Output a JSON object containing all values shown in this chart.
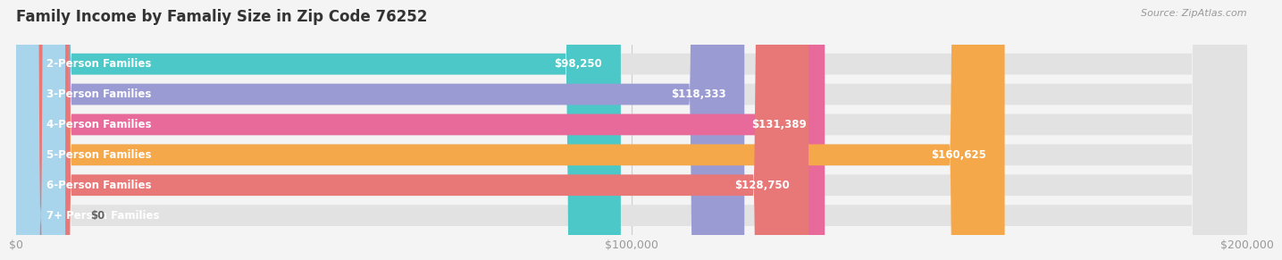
{
  "title": "Family Income by Famaliy Size in Zip Code 76252",
  "source": "Source: ZipAtlas.com",
  "categories": [
    "2-Person Families",
    "3-Person Families",
    "4-Person Families",
    "5-Person Families",
    "6-Person Families",
    "7+ Person Families"
  ],
  "values": [
    98250,
    118333,
    131389,
    160625,
    128750,
    0
  ],
  "bar_colors": [
    "#4DC8C8",
    "#9B9BD4",
    "#E86A9A",
    "#F5A84A",
    "#E87878",
    "#A8D4EC"
  ],
  "value_labels": [
    "$98,250",
    "$118,333",
    "$131,389",
    "$160,625",
    "$128,750",
    "$0"
  ],
  "xlim": [
    0,
    200000
  ],
  "xtick_values": [
    0,
    100000,
    200000
  ],
  "xtick_labels": [
    "$0",
    "$100,000",
    "$200,000"
  ],
  "background_color": "#f4f4f4",
  "bar_background": "#e2e2e2",
  "title_fontsize": 12,
  "label_fontsize": 8.5,
  "value_fontsize": 8.5,
  "bar_height": 0.7
}
